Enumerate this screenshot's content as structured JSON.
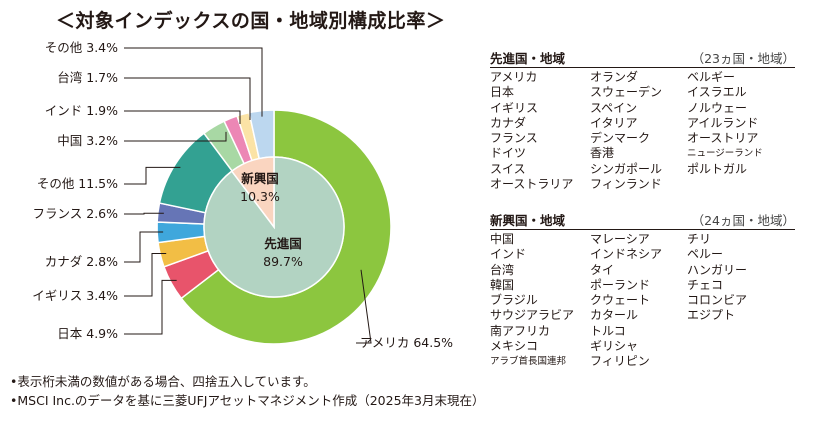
{
  "title": "＜対象インデックスの国・地域別構成比率＞",
  "chart_data": {
    "type": "pie",
    "outer_ring": [
      {
        "label": "アメリカ",
        "value": 64.5,
        "color": "#8cc63f",
        "label_text": "アメリカ 64.5%"
      },
      {
        "label": "日本",
        "value": 4.9,
        "color": "#e8546b",
        "label_text": "日本 4.9%"
      },
      {
        "label": "イギリス",
        "value": 3.4,
        "color": "#f2be45",
        "label_text": "イギリス 3.4%"
      },
      {
        "label": "カナダ",
        "value": 2.8,
        "color": "#3fa7dc",
        "label_text": "カナダ 2.8%"
      },
      {
        "label": "フランス",
        "value": 2.6,
        "color": "#6675b6",
        "label_text": "フランス 2.6%"
      },
      {
        "label": "その他",
        "value": 11.5,
        "color": "#33a192",
        "label_text": "その他 11.5%"
      },
      {
        "label": "中国",
        "value": 3.2,
        "color": "#a8d8a4",
        "label_text": "中国 3.2%"
      },
      {
        "label": "インド",
        "value": 1.9,
        "color": "#ec87b5",
        "label_text": "インド 1.9%"
      },
      {
        "label": "台湾",
        "value": 1.7,
        "color": "#fbe3a6",
        "label_text": "台湾 1.7%"
      },
      {
        "label": "その他",
        "value": 3.4,
        "color": "#bcd7ef",
        "label_text": "その他 3.4%"
      }
    ],
    "inner_pie": [
      {
        "label": "先進国",
        "value": 89.7,
        "color": "#b2d3c2",
        "value_text": "89.7%"
      },
      {
        "label": "新興国",
        "value": 10.3,
        "color": "#fad5c0",
        "value_text": "10.3%"
      }
    ]
  },
  "developed": {
    "title": "先進国・地域",
    "count": "（23ヵ国・地域）",
    "columns": [
      [
        "アメリカ",
        "日本",
        "イギリス",
        "カナダ",
        "フランス",
        "ドイツ",
        "スイス",
        "オーストラリア"
      ],
      [
        "オランダ",
        "スウェーデン",
        "スペイン",
        "イタリア",
        "デンマーク",
        "香港",
        "シンガポール",
        "フィンランド"
      ],
      [
        "ベルギー",
        "イスラエル",
        "ノルウェー",
        "アイルランド",
        "オーストリア",
        "ニュージーランド",
        "ポルトガル"
      ]
    ]
  },
  "emerging": {
    "title": "新興国・地域",
    "count": "（24ヵ国・地域）",
    "columns": [
      [
        "中国",
        "インド",
        "台湾",
        "韓国",
        "ブラジル",
        "サウジアラビア",
        "南アフリカ",
        "メキシコ",
        "アラブ首長国連邦"
      ],
      [
        "マレーシア",
        "インドネシア",
        "タイ",
        "ポーランド",
        "クウェート",
        "カタール",
        "トルコ",
        "ギリシャ",
        "フィリピン"
      ],
      [
        "チリ",
        "ペルー",
        "ハンガリー",
        "チェコ",
        "コロンビア",
        "エジプト"
      ]
    ]
  },
  "notes": [
    "•表示桁未満の数値がある場合、四捨五入しています。",
    "•MSCI Inc.のデータを基に三菱UFJアセットマネジメント作成（2025年3月末現在）"
  ]
}
